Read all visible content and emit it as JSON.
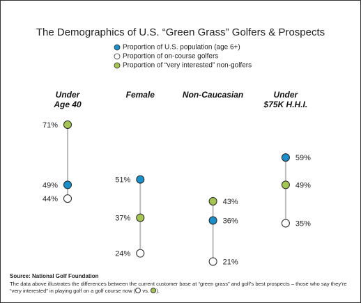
{
  "chart_data": {
    "type": "dot",
    "title": "The Demographics of U.S. “Green Grass” Golfers & Prospects",
    "categories": [
      "Under\nAge 40",
      "Female",
      "Non-Caucasian",
      "Under\n$75K H.H.I."
    ],
    "series": [
      {
        "name": "Proportion of U.S. population (age 6+)",
        "color": "#1a8fc9",
        "values": [
          49,
          51,
          36,
          59
        ],
        "value_labels": [
          "49%",
          "51%",
          "36%",
          "59%"
        ]
      },
      {
        "name": "Proportion of on-course golfers",
        "color": "#ffffff",
        "values": [
          44,
          24,
          21,
          35
        ],
        "value_labels": [
          "44%",
          "24%",
          "21%",
          "35%"
        ]
      },
      {
        "name": "Proportion of “very interested” non-golfers",
        "color": "#a4c453",
        "values": [
          71,
          37,
          43,
          49
        ],
        "value_labels": [
          "71%",
          "37%",
          "43%",
          "49%"
        ]
      }
    ],
    "source": "Source: National Golf Foundation",
    "note": {
      "line1": "The data above illustrates the differences between the current customer base at “green grass” and golf’s best prospects – those who say they’re",
      "line2": "“very interested” in playing golf on a golf course now (",
      "vs": "vs.",
      "end": ")."
    }
  }
}
